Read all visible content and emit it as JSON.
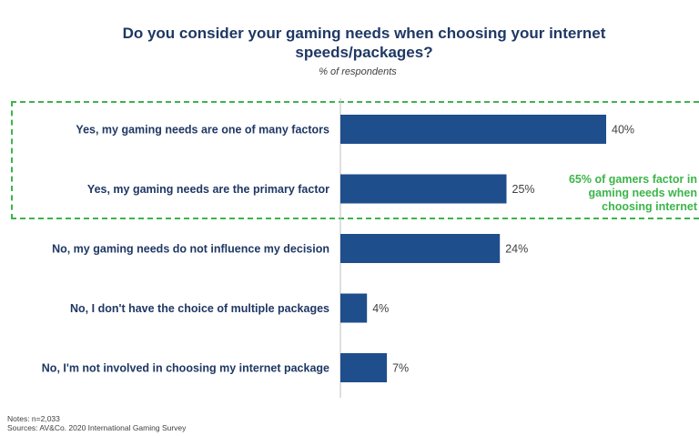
{
  "chart_data": {
    "type": "bar",
    "orientation": "horizontal",
    "title": "Do you consider your gaming needs when choosing your internet speeds/packages?",
    "subtitle": "% of respondents",
    "categories": [
      "Yes, my gaming needs are one of many factors",
      "Yes, my gaming needs are the primary factor",
      "No, my gaming needs do not influence my decision",
      "No, I don't have the choice of multiple packages",
      "No, I'm not involved in choosing my internet package"
    ],
    "values": [
      40,
      25,
      24,
      4,
      7
    ],
    "value_labels": [
      "40%",
      "25%",
      "24%",
      "4%",
      "7%"
    ],
    "unit": "%",
    "xlim": [
      0,
      100
    ],
    "bar_color": "#1f4e8c",
    "annotation": {
      "lines": [
        "65% of gamers factor in",
        "gaming needs when",
        "choosing internet"
      ],
      "color": "#3cb54a"
    }
  },
  "notes": {
    "line1": "Notes: n=2,033",
    "line2": "Sources: AV&Co. 2020 International Gaming Survey"
  }
}
